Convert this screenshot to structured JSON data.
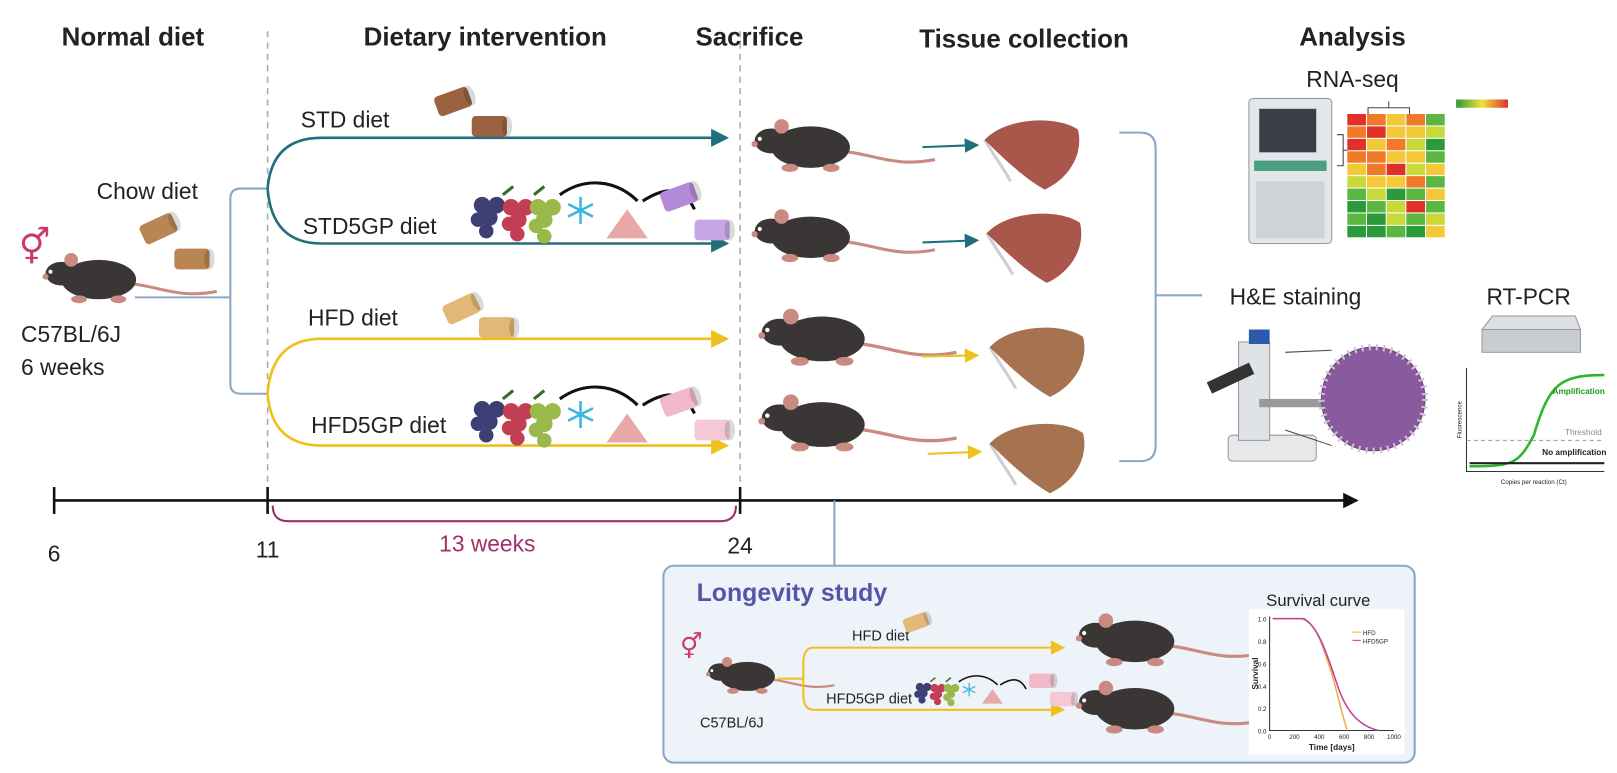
{
  "stages": [
    "Normal diet",
    "Dietary intervention",
    "Sacrifice",
    "Tissue collection",
    "Analysis"
  ],
  "baseline": {
    "diet": "Chow diet",
    "strain": "C57BL/6J",
    "age": "6 weeks"
  },
  "groups": [
    "STD diet",
    "STD5GP diet",
    "HFD diet",
    "HFD5GP diet"
  ],
  "analysis": {
    "rna": "RNA-seq",
    "he": "H&E staining",
    "pcr": "RT-PCR",
    "pcr_plot": {
      "curve": "Amplification",
      "threshold": "Threshold",
      "none": "No amplification",
      "y_label": "Fluorescence",
      "x_label": "Copies per reaction (Ct)"
    }
  },
  "timeline": {
    "ticks": [
      "6",
      "11",
      "24"
    ],
    "duration": "13 weeks"
  },
  "longevity": {
    "title": "Longevity study",
    "strain": "C57BL/6J",
    "groups": [
      "HFD diet",
      "HFD5GP diet"
    ],
    "plot": {
      "title": "Survival curve",
      "y_label": "Survival",
      "x_label": "Time [days]",
      "yticks": [
        "0.0",
        "0.2",
        "0.4",
        "0.6",
        "0.8",
        "1.0"
      ],
      "xticks": [
        "0",
        "200",
        "400",
        "600",
        "800",
        "1000"
      ],
      "legend": [
        "HFD",
        "HFD5GP"
      ]
    }
  }
}
